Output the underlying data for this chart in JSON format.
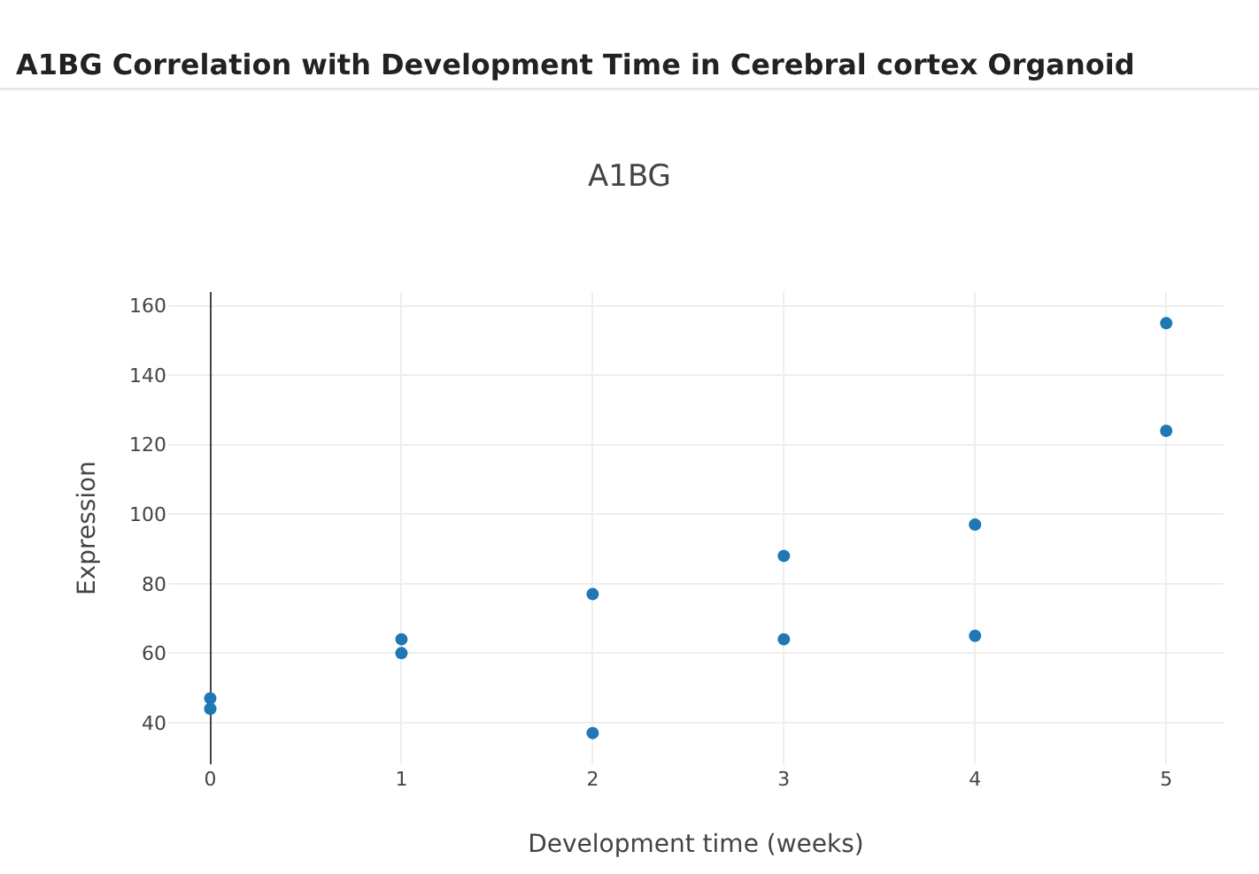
{
  "chart_data": {
    "type": "scatter",
    "title": "A1BG Correlation with Development Time in Cerebral cortex Organoid",
    "subtitle": "A1BG",
    "xlabel": "Development time (weeks)",
    "ylabel": "Expression",
    "series": [
      {
        "color": "#1f77b4",
        "x": [
          0,
          0,
          1,
          1,
          2,
          2,
          3,
          3,
          4,
          4,
          5,
          5
        ],
        "values": [
          47,
          44,
          64,
          60,
          77,
          37,
          88,
          64,
          97,
          65,
          155,
          124
        ]
      }
    ],
    "xlim": [
      -0.22,
      5.3
    ],
    "xticks": [
      0,
      1,
      2,
      3,
      4,
      5
    ],
    "ylim": [
      28,
      164
    ],
    "yticks": [
      40,
      60,
      80,
      100,
      120,
      140,
      160
    ],
    "grid": true,
    "marker": "circle",
    "legend": false
  }
}
